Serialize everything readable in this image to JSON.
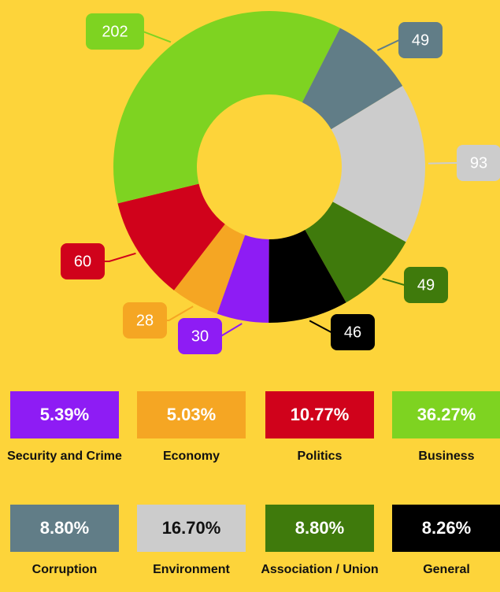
{
  "chart_data": {
    "type": "donut",
    "categories": [
      "Security and Crime",
      "Economy",
      "Politics",
      "Business",
      "Corruption",
      "Environment",
      "Association / Union",
      "General"
    ],
    "values": [
      30,
      28,
      60,
      202,
      49,
      93,
      49,
      46
    ],
    "percent_labels": [
      "5.39%",
      "5.03%",
      "10.77%",
      "36.27%",
      "8.80%",
      "16.70%",
      "8.80%",
      "8.26%"
    ],
    "colors": [
      "#8e1cf4",
      "#f5a623",
      "#d0021b",
      "#7ed321",
      "#617d87",
      "#cccccc",
      "#3f7a0c",
      "#000000"
    ]
  }
}
